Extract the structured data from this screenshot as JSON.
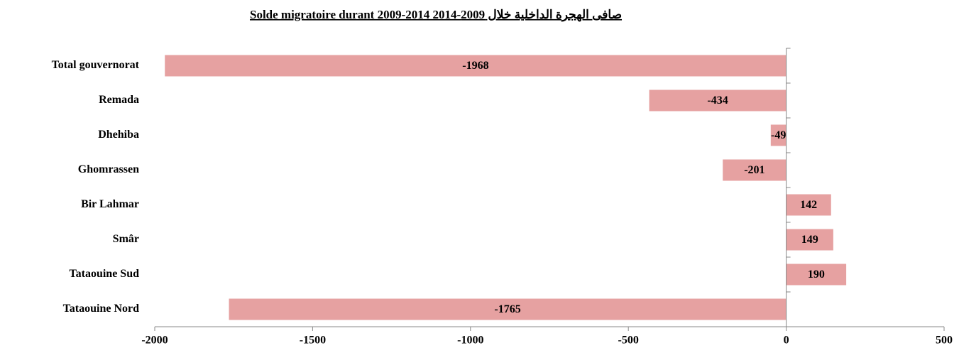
{
  "chart_data": {
    "type": "bar",
    "orientation": "horizontal",
    "title": "Solde migratoire durant 2009-2014 صافى الهجرة الداخلية خلال 2009-2014",
    "categories": [
      "Total gouvernorat",
      "Remada",
      "Dhehiba",
      "Ghomrassen",
      "Bir Lahmar",
      "Smâr",
      "Tataouine Sud",
      "Tataouine Nord"
    ],
    "values": [
      -1968,
      -434,
      -49,
      -201,
      142,
      149,
      190,
      -1765
    ],
    "color": "#e6a1a1",
    "xlim": [
      -2000,
      500
    ],
    "xticks": [
      -2000,
      -1500,
      -1000,
      -500,
      0,
      500
    ],
    "grid": false
  }
}
